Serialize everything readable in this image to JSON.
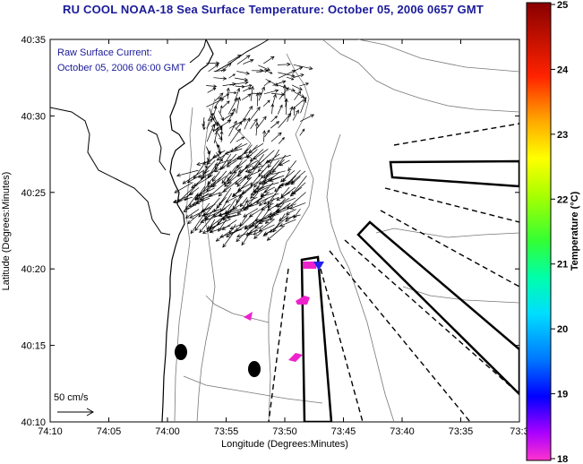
{
  "title": "RU COOL  NOAA-18  Sea Surface Temperature:  October 05, 2006 0657 GMT",
  "overlay": {
    "line1": "Raw Surface Current:",
    "line2": "October 05, 2006 06:00 GMT"
  },
  "scale_label": "50 cm/s",
  "axes": {
    "xlabel": "Longitude (Degrees:Minutes)",
    "ylabel": "Latitude (Degrees:Minutes)",
    "x_ticks": [
      "74:10",
      "74:05",
      "74:00",
      "73:55",
      "73:50",
      "73:45",
      "73:40",
      "73:35",
      "73:3"
    ],
    "y_ticks": [
      "40:35",
      "40:30",
      "40:25",
      "40:20",
      "40:15",
      "40:10"
    ]
  },
  "colorbar": {
    "label": "Temperature (°C)",
    "ticks": [
      "25",
      "24",
      "23",
      "22",
      "21",
      "20",
      "19",
      "18"
    ],
    "range": [
      18,
      25
    ],
    "colors": [
      "#ff33cc",
      "#8800ff",
      "#0000ff",
      "#00aaff",
      "#00ffff",
      "#00ff66",
      "#66ff00",
      "#ffff00",
      "#ffaa00",
      "#ff3300",
      "#cc0000",
      "#880000"
    ]
  },
  "features": {
    "land_mark_1": "black oval",
    "land_mark_2": "black oval",
    "sst_patch_color": "#ee22cc"
  }
}
